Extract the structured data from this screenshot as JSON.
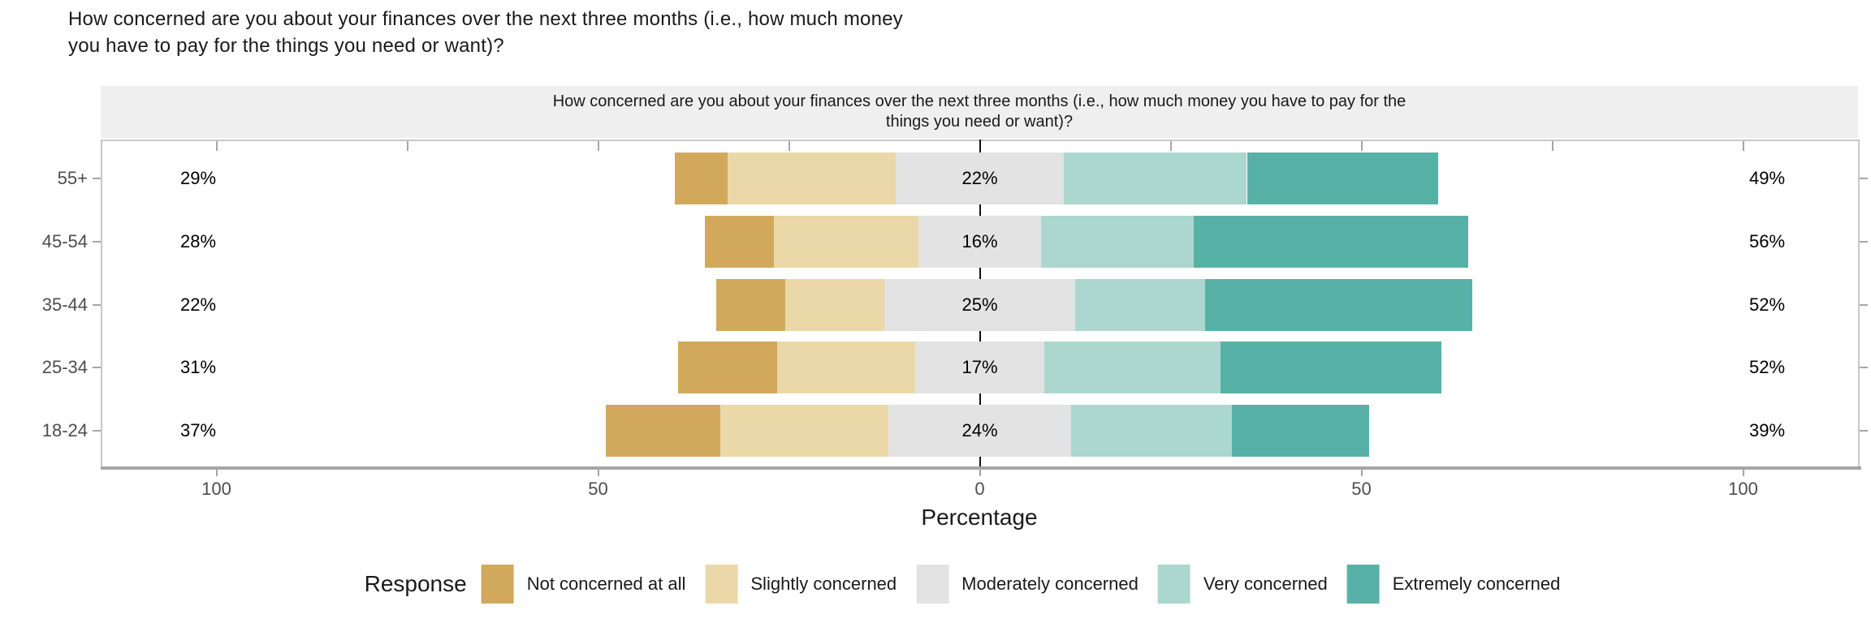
{
  "title": {
    "full": "How concerned are you about your finances over the next three months (i.e., how much money you have to pay for the things you need or want)?",
    "line1": "How concerned are you about your finances over the next three months (i.e., how much money",
    "line2": "you have to pay for the things you need or want)?"
  },
  "facet_strip": {
    "line1": "How concerned are you about your finances over the next three months (i.e., how much money you have to pay for the",
    "line2": "things you need or want)?",
    "background": "#EFEFEF"
  },
  "x_axis": {
    "label": "Percentage",
    "tick_labels": [
      "100",
      "50",
      "0",
      "50",
      "100"
    ],
    "tick_values": [
      -100,
      -50,
      0,
      50,
      100
    ],
    "top_tick_values": [
      -100,
      -75,
      -50,
      -25,
      0,
      25,
      50,
      75,
      100
    ]
  },
  "y_axis": {
    "labels": [
      "55+",
      "45-54",
      "35-44",
      "25-34",
      "18-24"
    ]
  },
  "legend": {
    "title": "Response",
    "items": [
      {
        "label": "Not concerned at all",
        "color": "#D2A95C"
      },
      {
        "label": "Slightly concerned",
        "color": "#EAD8A8"
      },
      {
        "label": "Moderately concerned",
        "color": "#E3E3E3"
      },
      {
        "label": "Very concerned",
        "color": "#ABD7CF"
      },
      {
        "label": "Extremely concerned",
        "color": "#58B1A7"
      }
    ]
  },
  "chart_data": {
    "type": "bar",
    "variant": "diverging-stacked-horizontal-likert",
    "title": "How concerned are you about your finances over the next three months (i.e., how much money you have to pay for the things you need or want)?",
    "categories": [
      "55+",
      "45-54",
      "35-44",
      "25-34",
      "18-24"
    ],
    "series": [
      {
        "name": "Not concerned at all",
        "values": [
          7,
          9,
          9,
          13,
          15
        ]
      },
      {
        "name": "Slightly concerned",
        "values": [
          22,
          19,
          13,
          18,
          22
        ]
      },
      {
        "name": "Moderately concerned",
        "values": [
          22,
          16,
          25,
          17,
          24
        ]
      },
      {
        "name": "Very concerned",
        "values": [
          24,
          20,
          17,
          23,
          21
        ]
      },
      {
        "name": "Extremely concerned",
        "values": [
          25,
          36,
          35,
          29,
          18
        ]
      }
    ],
    "center_category": "Moderately concerned",
    "row_labels": [
      {
        "category": "55+",
        "left": "29%",
        "center": "22%",
        "right": "49%"
      },
      {
        "category": "45-54",
        "left": "28%",
        "center": "16%",
        "right": "56%"
      },
      {
        "category": "35-44",
        "left": "22%",
        "center": "25%",
        "right": "52%"
      },
      {
        "category": "25-34",
        "left": "31%",
        "center": "17%",
        "right": "52%"
      },
      {
        "category": "18-24",
        "left": "37%",
        "center": "24%",
        "right": "39%"
      }
    ],
    "label_meaning": {
      "left": "Not concerned at all + Slightly concerned",
      "center": "Moderately concerned",
      "right": "Very concerned + Extremely concerned"
    },
    "xlabel": "Percentage",
    "x_range": [
      -115,
      115
    ],
    "legend_position": "bottom",
    "grid": "off"
  }
}
